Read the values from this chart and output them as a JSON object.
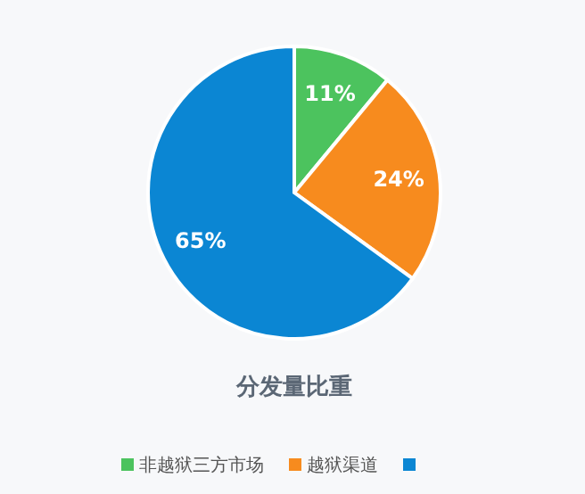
{
  "chart_data": {
    "type": "pie",
    "title": "分发量比重",
    "categories": [
      "非越狱三方市场",
      "越狱渠道",
      null
    ],
    "values": [
      11,
      24,
      65
    ],
    "value_labels": [
      "11%",
      "24%",
      "65%"
    ],
    "colors": [
      "#4cc35e",
      "#f78b1e",
      "#0b86d3"
    ],
    "legend": "bottom"
  }
}
